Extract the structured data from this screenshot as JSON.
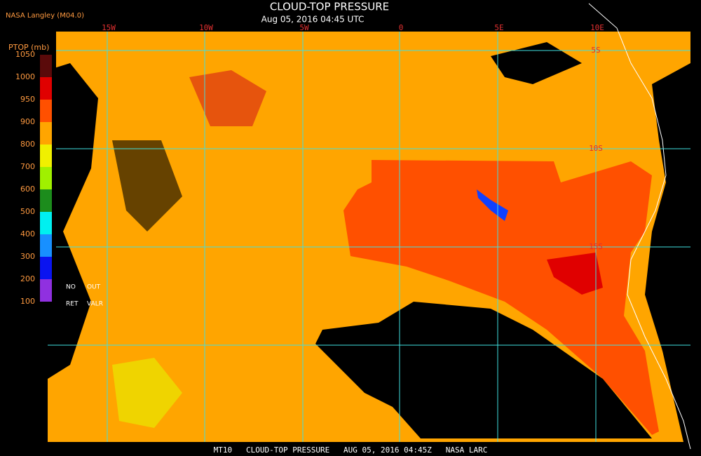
{
  "header": {
    "source": "NASA Langley (M04.0)",
    "title": "CLOUD-TOP PRESSURE",
    "datetime": "Aug 05, 2016 04:45 UTC"
  },
  "legend": {
    "title": "PTOP (mb)",
    "labels": [
      "1050",
      "1000",
      "950",
      "900",
      "800",
      "700",
      "600",
      "500",
      "400",
      "300",
      "200",
      "100"
    ],
    "no": "NO",
    "out": "OUT",
    "ret": "RET",
    "valr": "VALR"
  },
  "longitude_labels": [
    "15W",
    "10W",
    "5W",
    "0",
    "5E",
    "10E"
  ],
  "latitude_labels": [
    "5S",
    "10S",
    "15S"
  ],
  "footer": "MT10   CLOUD-TOP PRESSURE   AUG 05, 2016 04:45Z   NASA LARC"
}
